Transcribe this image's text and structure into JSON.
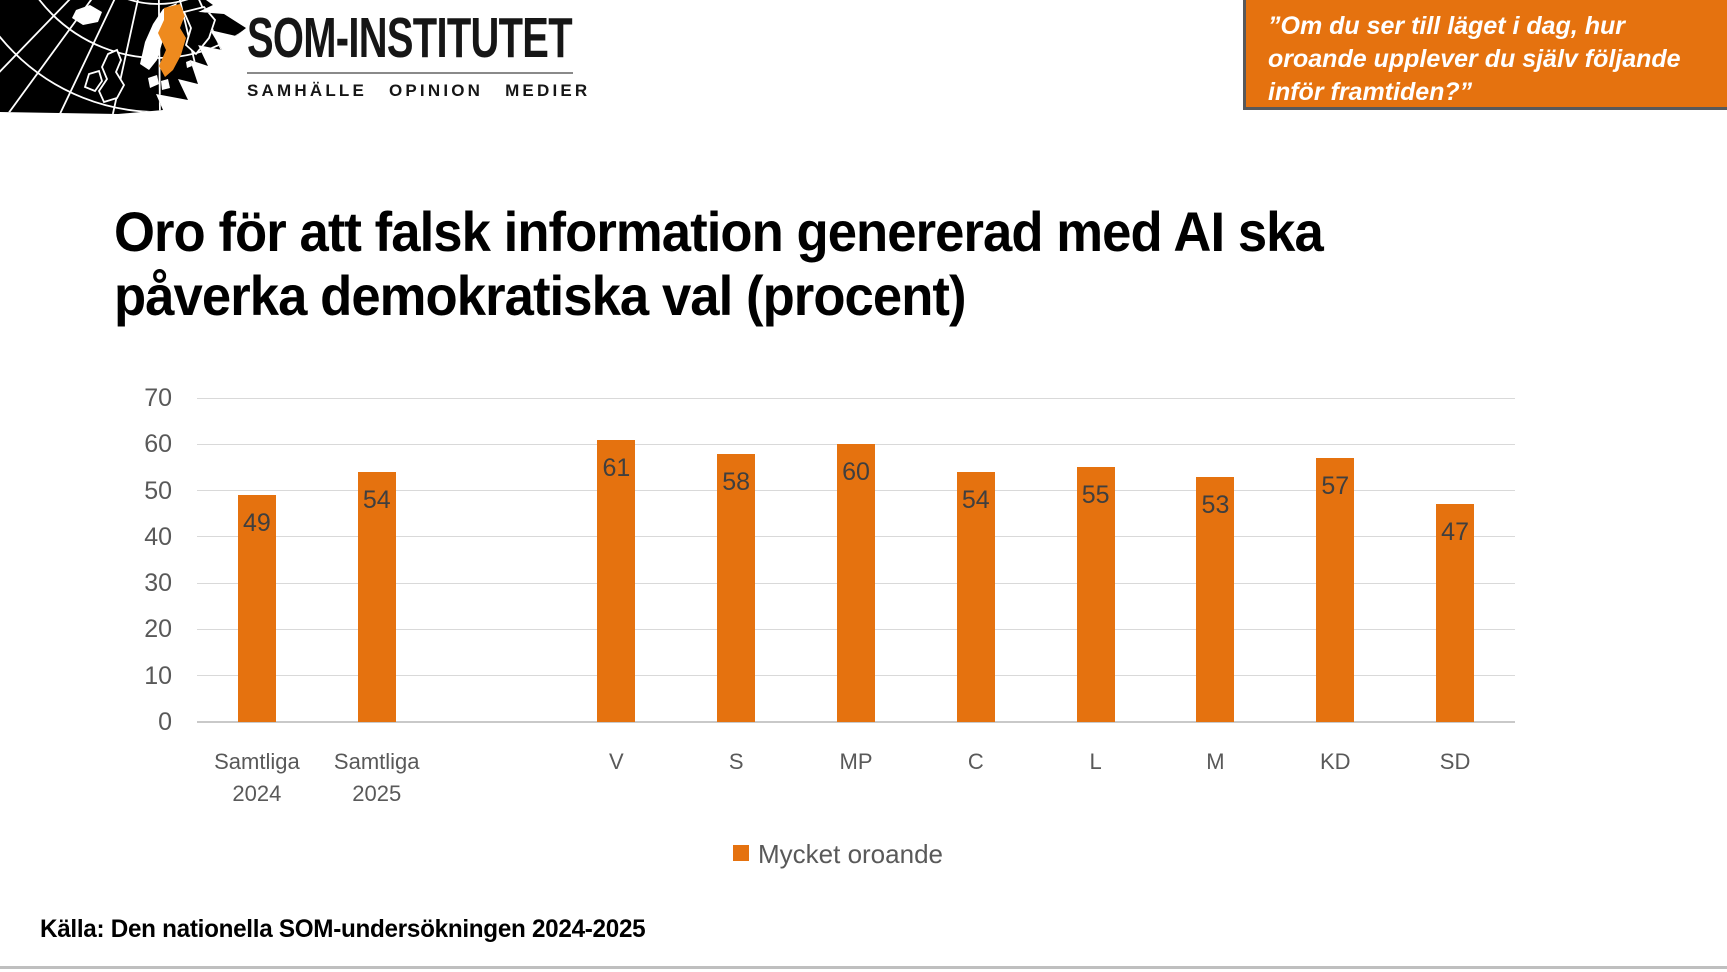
{
  "logo": {
    "name": "SOM-INSTITUTET",
    "subtitle": "SAMHÄLLE OPINION MEDIER",
    "map_land_color": "#000000",
    "map_sweden_color": "#ee8a1e"
  },
  "question_box": {
    "text": "”Om du ser till läget i dag, hur\noroande upplever du själv följande\ninför framtiden?”",
    "background": "#e5720f",
    "border_color": "#58595b"
  },
  "title": {
    "line1": "Oro för att falsk information genererad med AI ska",
    "line2": "påverka demokratiska val (procent)"
  },
  "chart_data": {
    "type": "bar",
    "categories": [
      "Samtliga\n2024",
      "Samtliga\n2025",
      "V",
      "S",
      "MP",
      "C",
      "L",
      "M",
      "KD",
      "SD"
    ],
    "values": [
      49,
      54,
      61,
      58,
      60,
      54,
      55,
      53,
      57,
      47
    ],
    "series_name": "Mycket oroande",
    "title": "Oro för att falsk information genererad med AI ska påverka demokratiska val (procent)",
    "xlabel": "",
    "ylabel": "",
    "ylim": [
      0,
      70
    ],
    "yticks": [
      0,
      10,
      20,
      30,
      40,
      50,
      60,
      70
    ],
    "grid": true,
    "legend_position": "bottom",
    "bar_color": "#e5720f",
    "data_label_color": "#3f3f3f",
    "gap_after_index": 1
  },
  "legend": {
    "label": "Mycket oroande",
    "swatch_color": "#e5720f"
  },
  "source": {
    "text": "Källa: Den nationella SOM-undersökningen 2024-2025"
  }
}
